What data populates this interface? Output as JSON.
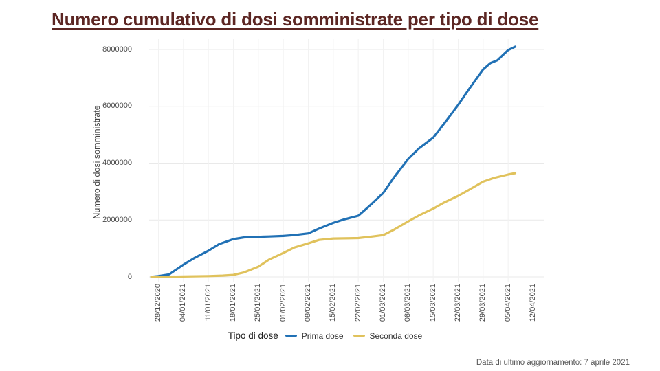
{
  "title": "Numero cumulativo di dosi somministrate per tipo di dose",
  "footer": "Data di ultimo aggiornamento: 7 aprile 2021",
  "colors": {
    "title_text": "#5C2623",
    "prima_dose": "#2171B5",
    "seconda_dose": "#E0C25C",
    "grid_horizontal": "#e9e9e9",
    "grid_vertical": "#f2f2f2",
    "axis_text": "#4a4a4a",
    "footer_text": "#595959"
  },
  "chart_data": {
    "type": "line",
    "title": "Numero cumulativo di dosi somministrate per tipo di dose",
    "xlabel": "",
    "ylabel": "Numero di dosi somministrate",
    "x_tick_labels": [
      "28/12/2020",
      "04/01/2021",
      "11/01/2021",
      "18/01/2021",
      "25/01/2021",
      "01/02/2021",
      "08/02/2021",
      "15/02/2021",
      "22/02/2021",
      "01/03/2021",
      "08/03/2021",
      "15/03/2021",
      "22/03/2021",
      "29/03/2021",
      "05/04/2021",
      "12/04/2021"
    ],
    "x_tick_interval_days": 7,
    "y_ticks": [
      0,
      2000000,
      4000000,
      6000000,
      8000000
    ],
    "ylim": [
      0,
      8600000
    ],
    "grid": true,
    "legend": {
      "title": "Tipo di dose",
      "position": "bottom"
    },
    "series": [
      {
        "name": "Prima dose",
        "color": "#2171B5",
        "points": [
          {
            "day": -2,
            "value": 5000
          },
          {
            "day": 0,
            "value": 30000
          },
          {
            "day": 3,
            "value": 90000
          },
          {
            "day": 7,
            "value": 430000
          },
          {
            "day": 10,
            "value": 660000
          },
          {
            "day": 14,
            "value": 920000
          },
          {
            "day": 17,
            "value": 1150000
          },
          {
            "day": 21,
            "value": 1330000
          },
          {
            "day": 24,
            "value": 1390000
          },
          {
            "day": 28,
            "value": 1410000
          },
          {
            "day": 31,
            "value": 1420000
          },
          {
            "day": 35,
            "value": 1440000
          },
          {
            "day": 38,
            "value": 1470000
          },
          {
            "day": 42,
            "value": 1530000
          },
          {
            "day": 45,
            "value": 1700000
          },
          {
            "day": 49,
            "value": 1900000
          },
          {
            "day": 52,
            "value": 2020000
          },
          {
            "day": 56,
            "value": 2150000
          },
          {
            "day": 59,
            "value": 2480000
          },
          {
            "day": 63,
            "value": 2950000
          },
          {
            "day": 66,
            "value": 3500000
          },
          {
            "day": 70,
            "value": 4150000
          },
          {
            "day": 73,
            "value": 4520000
          },
          {
            "day": 77,
            "value": 4900000
          },
          {
            "day": 80,
            "value": 5380000
          },
          {
            "day": 84,
            "value": 6050000
          },
          {
            "day": 87,
            "value": 6600000
          },
          {
            "day": 91,
            "value": 7300000
          },
          {
            "day": 93,
            "value": 7520000
          },
          {
            "day": 95,
            "value": 7620000
          },
          {
            "day": 98,
            "value": 7980000
          },
          {
            "day": 100,
            "value": 8100000
          }
        ]
      },
      {
        "name": "Seconda dose",
        "color": "#E0C25C",
        "points": [
          {
            "day": -2,
            "value": 0
          },
          {
            "day": 0,
            "value": 5000
          },
          {
            "day": 7,
            "value": 15000
          },
          {
            "day": 14,
            "value": 30000
          },
          {
            "day": 18,
            "value": 45000
          },
          {
            "day": 21,
            "value": 70000
          },
          {
            "day": 24,
            "value": 160000
          },
          {
            "day": 28,
            "value": 360000
          },
          {
            "day": 31,
            "value": 610000
          },
          {
            "day": 35,
            "value": 840000
          },
          {
            "day": 38,
            "value": 1030000
          },
          {
            "day": 42,
            "value": 1180000
          },
          {
            "day": 45,
            "value": 1300000
          },
          {
            "day": 49,
            "value": 1350000
          },
          {
            "day": 52,
            "value": 1355000
          },
          {
            "day": 56,
            "value": 1365000
          },
          {
            "day": 60,
            "value": 1420000
          },
          {
            "day": 63,
            "value": 1470000
          },
          {
            "day": 66,
            "value": 1660000
          },
          {
            "day": 70,
            "value": 1950000
          },
          {
            "day": 73,
            "value": 2160000
          },
          {
            "day": 77,
            "value": 2400000
          },
          {
            "day": 80,
            "value": 2610000
          },
          {
            "day": 84,
            "value": 2850000
          },
          {
            "day": 87,
            "value": 3060000
          },
          {
            "day": 91,
            "value": 3350000
          },
          {
            "day": 94,
            "value": 3480000
          },
          {
            "day": 98,
            "value": 3600000
          },
          {
            "day": 100,
            "value": 3650000
          }
        ]
      }
    ]
  }
}
